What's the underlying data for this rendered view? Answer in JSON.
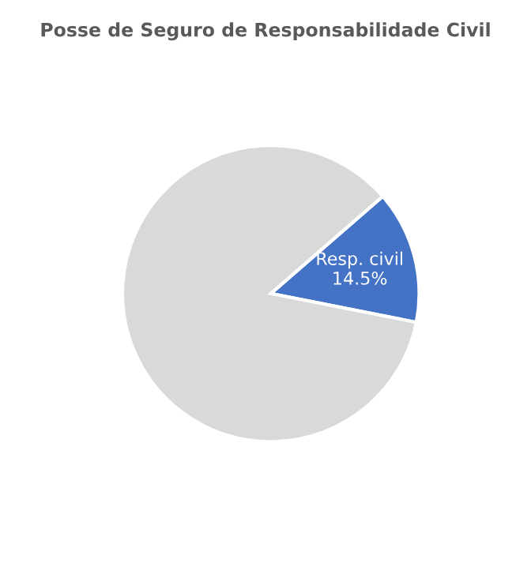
{
  "chart_data": {
    "type": "pie",
    "title": "Posse de Seguro de Responsabilidade Civil",
    "categories": [
      "Resp. civil",
      null
    ],
    "values": [
      14.5,
      85.5
    ],
    "colors": [
      "#4472c4",
      "#d9d9d9"
    ],
    "value_labels": [
      "14.5%",
      null
    ],
    "legend": false
  }
}
